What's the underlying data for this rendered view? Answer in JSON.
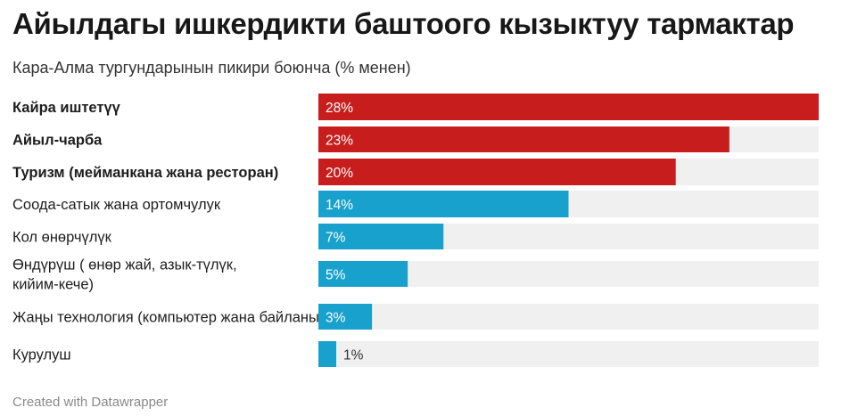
{
  "title": "Айылдагы ишкердикти баштоого кызыктуу тармактар",
  "subtitle": "Кара-Алма тургундарынын пикири боюнча (% менен)",
  "footer": "Created with Datawrapper",
  "colors": {
    "highlight": "#c71e1d",
    "other": "#18a1cd",
    "track": "#f0f0f0"
  },
  "chart_data": {
    "type": "bar",
    "orientation": "horizontal",
    "categories": [
      "Кайра иштетүү",
      "Айыл-чарба",
      "Туризм (мейманкана жана ресторан)",
      "Соода-сатык жана ортомчулук",
      "Кол өнөрчүлүк",
      "Өндүрүш ( өнөр жай, азык-түлүк, кийим-кече)",
      "Жаңы технология (компьютер жана байланыш)",
      "Курулуш"
    ],
    "values": [
      28,
      23,
      20,
      14,
      7,
      5,
      3,
      1
    ],
    "value_labels": [
      "28%",
      "23%",
      "20%",
      "14%",
      "7%",
      "5%",
      "3%",
      "1%"
    ],
    "highlighted": [
      true,
      true,
      true,
      false,
      false,
      false,
      false,
      false
    ],
    "xlim": [
      0,
      28
    ],
    "unit": "%"
  }
}
